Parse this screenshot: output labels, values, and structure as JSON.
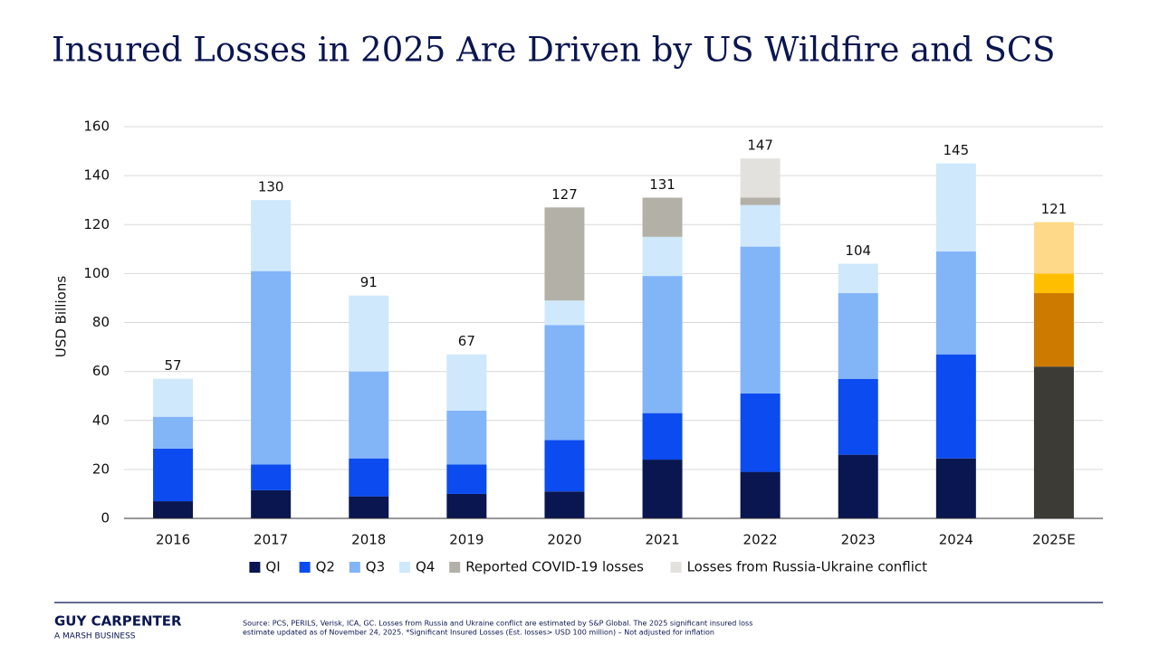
{
  "header": {
    "title": "Insured Losses in 2025 Are Driven by US Wildfire and SCS"
  },
  "chart_data": {
    "type": "stacked_bar",
    "y_label": "USD Billions",
    "categories": [
      "2016",
      "2017",
      "2018",
      "2019",
      "2020",
      "2021",
      "2022",
      "2023",
      "2024",
      "2025E"
    ],
    "ylim": [
      0,
      160
    ],
    "yticks": [
      0,
      20,
      40,
      60,
      80,
      100,
      120,
      140,
      160
    ],
    "grid": true,
    "legend": "bottom",
    "series": [
      {
        "name": "QI",
        "color": "#0a1650",
        "values": [
          7,
          11.5,
          9,
          10,
          11,
          24,
          19,
          26,
          24.5,
          62
        ],
        "colors": [
          "#0a1650",
          "#0a1650",
          "#0a1650",
          "#0a1650",
          "#0a1650",
          "#0a1650",
          "#0a1650",
          "#0a1650",
          "#0a1650",
          "#3d3b36"
        ]
      },
      {
        "name": "Q2",
        "color": "#0b4bf0",
        "values": [
          21.5,
          10.5,
          15.5,
          12,
          21,
          19,
          32,
          31,
          42.5,
          30
        ],
        "colors": [
          "#0b4bf0",
          "#0b4bf0",
          "#0b4bf0",
          "#0b4bf0",
          "#0b4bf0",
          "#0b4bf0",
          "#0b4bf0",
          "#0b4bf0",
          "#0b4bf0",
          "#cc7a00"
        ]
      },
      {
        "name": "Q3",
        "color": "#82b4f8",
        "values": [
          13,
          79,
          35.5,
          22,
          47,
          56,
          60,
          35,
          42,
          8
        ],
        "colors": [
          "#82b4f8",
          "#82b4f8",
          "#82b4f8",
          "#82b4f8",
          "#82b4f8",
          "#82b4f8",
          "#82b4f8",
          "#82b4f8",
          "#82b4f8",
          "#ffbf00"
        ]
      },
      {
        "name": "Q4",
        "color": "#cfe8fc",
        "values": [
          15.5,
          29,
          31,
          23,
          10,
          16,
          17,
          12,
          36,
          21
        ],
        "colors": [
          "#cfe8fc",
          "#cfe8fc",
          "#cfe8fc",
          "#cfe8fc",
          "#cfe8fc",
          "#cfe8fc",
          "#cfe8fc",
          "#cfe8fc",
          "#cfe8fc",
          "#ffd98a"
        ]
      },
      {
        "name": "Reported COVID-19 losses",
        "color": "#b3b0a8",
        "values": [
          null,
          null,
          null,
          null,
          38,
          16,
          3,
          null,
          null,
          null
        ]
      },
      {
        "name": "Losses from Russia-Ukraine conflict",
        "color": "#e3e1de",
        "values": [
          null,
          null,
          null,
          null,
          null,
          null,
          16,
          null,
          null,
          null
        ]
      }
    ],
    "totals": [
      57,
      130,
      91,
      67,
      127,
      131,
      147,
      104,
      145,
      121
    ]
  },
  "footer": {
    "brand": "GUY CARPENTER",
    "tagline": "A MARSH BUSINESS",
    "source": [
      "Source: PCS, PERILS, Verisk, ICA, GC. Losses from Russia and Ukraine conflict are estimated by S&P Global. The 2025 significant insured loss",
      "estimate updated as of November 24, 2025. *Significant Insured Losses (Est. losses> USD 100 million) – Not adjusted for inflation"
    ]
  }
}
